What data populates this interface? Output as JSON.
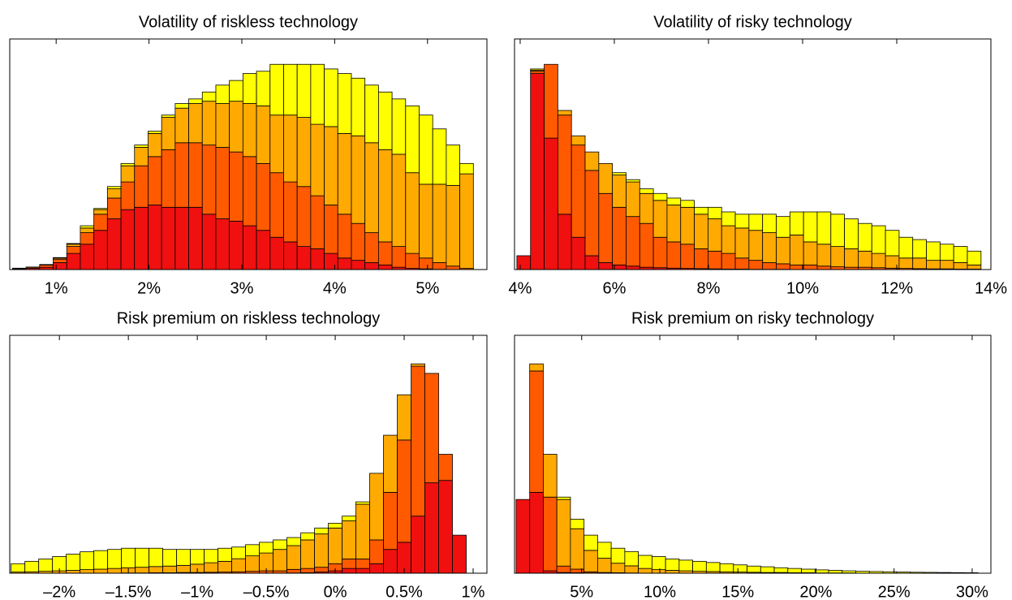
{
  "chart_data": [
    {
      "type": "histogram",
      "title": "Volatility of riskless technology",
      "bins": [
        0.53,
        0.676,
        0.822,
        0.968,
        1.114,
        1.26,
        1.406,
        1.552,
        1.698,
        1.844,
        1.99,
        2.136,
        2.282,
        2.428,
        2.574,
        2.72,
        2.866,
        3.012,
        3.158,
        3.304,
        3.45,
        3.596,
        3.742,
        3.888,
        4.034,
        4.18,
        4.326,
        4.472,
        4.618,
        4.764,
        4.91,
        5.056,
        5.202,
        5.348,
        5.494
      ],
      "series": [
        {
          "color": "#f01010",
          "values": [
            0.3,
            0.5,
            1,
            3,
            7,
            11,
            17,
            22,
            26,
            27,
            28,
            27,
            27,
            27,
            24,
            22,
            21,
            19,
            17,
            14,
            12,
            10,
            9,
            7,
            5,
            4,
            3,
            2,
            1,
            0.5,
            0.3,
            0.1,
            0,
            0
          ]
        },
        {
          "color": "#ff5a00",
          "values": [
            0.2,
            0.5,
            1,
            1.5,
            3,
            5,
            7,
            9,
            12,
            18,
            21,
            25,
            28,
            28,
            30,
            31,
            30,
            30,
            29,
            28,
            26,
            26,
            23,
            21,
            19,
            16,
            13,
            10,
            9,
            6.5,
            4.7,
            2.9,
            1.5,
            0.5
          ]
        },
        {
          "color": "#ffaa00",
          "values": [
            0,
            0,
            0.1,
            0.5,
            1,
            2,
            2,
            4,
            7,
            8,
            10,
            14,
            15,
            17,
            19,
            19,
            22,
            23,
            25,
            25,
            29,
            30,
            31,
            34,
            35,
            38,
            39,
            40,
            40,
            35,
            32,
            34,
            35,
            41
          ]
        },
        {
          "color": "#ffff00",
          "values": [
            0.1,
            0.1,
            0.1,
            0.2,
            0.3,
            1,
            0.5,
            1,
            1,
            1,
            1,
            1,
            2,
            2,
            4,
            8,
            9,
            13,
            15,
            22,
            22,
            23,
            26,
            25,
            26,
            25,
            25,
            25,
            24,
            29,
            30,
            24,
            17.5,
            4.5
          ]
        }
      ],
      "xlim": [
        0.5,
        5.64
      ],
      "ylim": [
        0,
        100
      ],
      "xticks": [
        {
          "value": 1,
          "label": "1%"
        },
        {
          "value": 2,
          "label": "2%"
        },
        {
          "value": 3,
          "label": "3%"
        },
        {
          "value": 4,
          "label": "4%"
        },
        {
          "value": 5,
          "label": "5%"
        }
      ]
    },
    {
      "type": "histogram",
      "title": "Volatility of risky technology",
      "bins": [
        3.93,
        4.22,
        4.51,
        4.8,
        5.09,
        5.38,
        5.67,
        5.96,
        6.25,
        6.54,
        6.83,
        7.12,
        7.41,
        7.7,
        7.99,
        8.28,
        8.57,
        8.86,
        9.15,
        9.44,
        9.73,
        10.02,
        10.31,
        10.6,
        10.89,
        11.18,
        11.47,
        11.76,
        12.05,
        12.34,
        12.63,
        12.92,
        13.21,
        13.5,
        13.79
      ],
      "series": [
        {
          "color": "#f01010",
          "values": [
            6,
            85,
            57,
            24,
            14,
            6,
            3,
            2,
            1.5,
            1,
            0.8,
            0.6,
            0.5,
            0.4,
            0.3,
            0.2,
            0.2,
            0.1,
            0.1,
            0.1,
            0,
            0,
            0,
            0,
            0,
            0,
            0,
            0,
            0,
            0,
            0,
            0,
            0,
            0
          ]
        },
        {
          "color": "#ff5a00",
          "values": [
            0,
            1,
            32,
            43,
            40,
            37,
            30,
            25,
            21.5,
            19,
            13.2,
            11.4,
            10.5,
            8.6,
            7.7,
            6.8,
            4.8,
            3.9,
            2.9,
            2.4,
            2,
            2,
            1.5,
            1.2,
            1,
            1,
            0.8,
            0.6,
            0.5,
            0.4,
            0.3,
            0.3,
            0.2,
            0.2
          ]
        },
        {
          "color": "#ffaa00",
          "values": [
            0,
            0.5,
            0,
            2,
            4,
            8,
            13,
            14,
            15,
            13,
            16,
            16,
            16,
            15,
            14,
            12,
            13,
            13,
            13,
            11.5,
            13,
            10,
            9.5,
            8.8,
            8,
            7,
            6.2,
            5.4,
            4.5,
            4.6,
            3.7,
            3.7,
            2.8,
            1.8
          ]
        },
        {
          "color": "#ffff00",
          "values": [
            0,
            0.5,
            0,
            0,
            0,
            0,
            0,
            1,
            1,
            2,
            3,
            3,
            3,
            3,
            5,
            6,
            6,
            7,
            8,
            9,
            10,
            13,
            14,
            14,
            13,
            12,
            12,
            11,
            9,
            8,
            8,
            7,
            7,
            6
          ]
        }
      ],
      "xlim": [
        3.88,
        14
      ],
      "ylim": [
        0,
        100
      ],
      "xticks": [
        {
          "value": 4,
          "label": "4%"
        },
        {
          "value": 6,
          "label": "6%"
        },
        {
          "value": 8,
          "label": "8%"
        },
        {
          "value": 10,
          "label": "10%"
        },
        {
          "value": 12,
          "label": "12%"
        },
        {
          "value": 14,
          "label": "14%"
        }
      ]
    },
    {
      "type": "histogram",
      "title": "Risk premium on riskless technology",
      "bins": [
        -2.35,
        -2.25,
        -2.15,
        -2.05,
        -1.95,
        -1.85,
        -1.75,
        -1.65,
        -1.55,
        -1.45,
        -1.35,
        -1.25,
        -1.15,
        -1.05,
        -0.95,
        -0.85,
        -0.75,
        -0.65,
        -0.55,
        -0.45,
        -0.35,
        -0.25,
        -0.15,
        -0.05,
        0.05,
        0.15,
        0.25,
        0.35,
        0.45,
        0.55,
        0.65,
        0.75,
        0.85,
        0.95
      ],
      "series": [
        {
          "color": "#f01010",
          "values": [
            0,
            0,
            0,
            0,
            0,
            0,
            0,
            0,
            0,
            0,
            0,
            0,
            0,
            0,
            0,
            0,
            0,
            0,
            0,
            0,
            0.1,
            0.2,
            0.5,
            1,
            2,
            2,
            4,
            10,
            13,
            24,
            38,
            39,
            16
          ]
        },
        {
          "color": "#ff5a00",
          "values": [
            0,
            0,
            0,
            0,
            0,
            0,
            0,
            0,
            0.1,
            0.1,
            0.2,
            0.2,
            0.3,
            0.3,
            0.4,
            0.5,
            0.6,
            0.8,
            1,
            1,
            1.5,
            1.8,
            2,
            3,
            4,
            4,
            10,
            24,
            43,
            63,
            46,
            11,
            0
          ]
        },
        {
          "color": "#ffaa00",
          "values": [
            0.5,
            0.6,
            0.8,
            1,
            1.2,
            1.5,
            1.7,
            2,
            2.2,
            2.4,
            2.6,
            2.8,
            3,
            3.5,
            4,
            4.5,
            5.5,
            6.5,
            7.5,
            9,
            10,
            12,
            14,
            15,
            16,
            23,
            28,
            24,
            19,
            1,
            0,
            0,
            0
          ]
        },
        {
          "color": "#ffff00",
          "values": [
            3.5,
            4.4,
            5.2,
            6,
            6.8,
            7.5,
            7.8,
            8,
            8.2,
            8,
            7.7,
            7,
            6.7,
            6.2,
            5.6,
            5.5,
            4.9,
            4.7,
            4.5,
            4,
            3.4,
            3,
            2.5,
            2,
            2,
            1,
            0,
            0,
            0,
            0,
            0,
            0,
            0
          ]
        }
      ],
      "xlim": [
        -2.36,
        1.1
      ],
      "ylim": [
        0,
        100
      ],
      "xticks": [
        {
          "value": -2,
          "label": "–2%"
        },
        {
          "value": -1.5,
          "label": "–1.5%"
        },
        {
          "value": -1,
          "label": "–1%"
        },
        {
          "value": -0.5,
          "label": "–0.5%"
        },
        {
          "value": 0,
          "label": "0%"
        },
        {
          "value": 0.5,
          "label": "0.5%"
        },
        {
          "value": 1,
          "label": "1%"
        }
      ]
    },
    {
      "type": "histogram",
      "title": "Risk premium on risky technology",
      "bins": [
        0.8,
        1.67,
        2.54,
        3.41,
        4.28,
        5.15,
        6.02,
        6.89,
        7.76,
        8.63,
        9.5,
        10.37,
        11.24,
        12.11,
        12.98,
        13.85,
        14.72,
        15.59,
        16.46,
        17.33,
        18.2,
        19.07,
        19.94,
        20.81,
        21.68,
        22.55,
        23.42,
        24.29,
        25.16,
        26.03,
        26.9,
        27.77,
        28.64,
        29.51,
        30.38
      ],
      "series": [
        {
          "color": "#f01010",
          "values": [
            31,
            34,
            1,
            0.3,
            0.2,
            0.1,
            0,
            0,
            0,
            0,
            0,
            0,
            0,
            0,
            0,
            0,
            0,
            0,
            0,
            0,
            0,
            0,
            0,
            0,
            0,
            0,
            0,
            0,
            0,
            0,
            0,
            0,
            0,
            0
          ]
        },
        {
          "color": "#ff5a00",
          "values": [
            0,
            51,
            31,
            2.7,
            1.5,
            0.5,
            0.3,
            0.2,
            0.1,
            0,
            0,
            0,
            0,
            0,
            0,
            0,
            0,
            0,
            0,
            0,
            0,
            0,
            0,
            0,
            0,
            0,
            0,
            0,
            0,
            0,
            0,
            0,
            0,
            0
          ]
        },
        {
          "color": "#ffaa00",
          "values": [
            0,
            3,
            18,
            28,
            17,
            9,
            6,
            4,
            3,
            2,
            1.5,
            1.2,
            1,
            0.8,
            0.7,
            0.6,
            0.5,
            0.4,
            0.3,
            0.3,
            0.2,
            0.2,
            0.1,
            0.1,
            0.1,
            0,
            0,
            0,
            0,
            0,
            0,
            0,
            0,
            0
          ]
        },
        {
          "color": "#ffff00",
          "values": [
            0,
            0,
            0,
            1,
            4,
            6.4,
            6.7,
            6.3,
            6,
            5.5,
            5.5,
            4.8,
            4.5,
            4.2,
            3.8,
            3.4,
            3,
            2.6,
            2.4,
            2,
            1.8,
            1.5,
            1.3,
            1.1,
            0.9,
            0.8,
            0.7,
            0.6,
            0.5,
            0.4,
            0.35,
            0.3,
            0.25,
            0.2
          ]
        }
      ],
      "xlim": [
        0.7,
        31.2
      ],
      "ylim": [
        0,
        100
      ],
      "xticks": [
        {
          "value": 5,
          "label": "5%"
        },
        {
          "value": 10,
          "label": "10%"
        },
        {
          "value": 15,
          "label": "15%"
        },
        {
          "value": 20,
          "label": "20%"
        },
        {
          "value": 25,
          "label": "25%"
        },
        {
          "value": 30,
          "label": "30%"
        }
      ]
    }
  ]
}
